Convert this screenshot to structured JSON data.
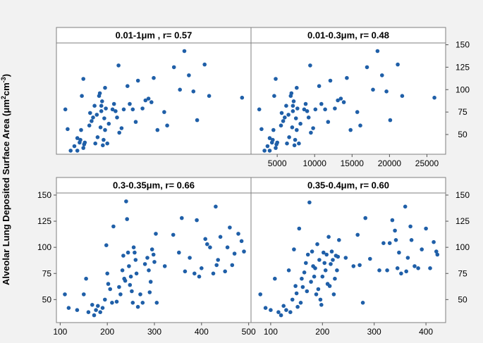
{
  "figure": {
    "ylabel_main": "Alveolar Lung  Deposited Surface Area (μm",
    "ylabel_sup1": "2",
    "ylabel_mid": "cm",
    "ylabel_sup2": "-3",
    "ylabel_end": ")",
    "marker_color": "#1f5fa8",
    "panel_bg": "#ffffff",
    "figure_bg": "#f2f2f2"
  },
  "chart_data": [
    {
      "type": "scatter",
      "title": "0.01-1μm  , r= 0.57",
      "xlim": [
        1500,
        27500
      ],
      "xticks": [
        5000,
        10000,
        15000,
        20000,
        25000
      ],
      "xticks_shown": false,
      "ylim": [
        28,
        152
      ],
      "yticks": [
        50,
        75,
        100,
        125,
        150
      ],
      "yticks_side": "right",
      "points": [
        [
          2700,
          78
        ],
        [
          3000,
          56
        ],
        [
          3400,
          32
        ],
        [
          3900,
          37
        ],
        [
          4300,
          32
        ],
        [
          4300,
          46
        ],
        [
          4600,
          41
        ],
        [
          4700,
          44
        ],
        [
          4800,
          55
        ],
        [
          4900,
          93
        ],
        [
          5100,
          112
        ],
        [
          5100,
          35
        ],
        [
          5200,
          39
        ],
        [
          5300,
          41
        ],
        [
          5900,
          60
        ],
        [
          6000,
          74
        ],
        [
          6200,
          65
        ],
        [
          6400,
          69
        ],
        [
          6600,
          82
        ],
        [
          6700,
          40
        ],
        [
          6900,
          72
        ],
        [
          7000,
          47
        ],
        [
          7200,
          93
        ],
        [
          7300,
          96
        ],
        [
          7400,
          58
        ],
        [
          7500,
          76
        ],
        [
          7500,
          82
        ],
        [
          7600,
          87
        ],
        [
          7700,
          38
        ],
        [
          7800,
          44
        ],
        [
          7900,
          68
        ],
        [
          8000,
          102
        ],
        [
          8000,
          55
        ],
        [
          8100,
          79
        ],
        [
          8300,
          40
        ],
        [
          8500,
          62
        ],
        [
          9000,
          78
        ],
        [
          9200,
          84
        ],
        [
          9400,
          76
        ],
        [
          9600,
          69
        ],
        [
          9800,
          127
        ],
        [
          9900,
          52
        ],
        [
          10200,
          57
        ],
        [
          10500,
          78
        ],
        [
          11000,
          104
        ],
        [
          11300,
          84
        ],
        [
          11700,
          78
        ],
        [
          12100,
          64
        ],
        [
          12400,
          110
        ],
        [
          13000,
          79
        ],
        [
          13400,
          88
        ],
        [
          13800,
          90
        ],
        [
          14200,
          86
        ],
        [
          14500,
          113
        ],
        [
          15000,
          55
        ],
        [
          15900,
          75
        ],
        [
          16300,
          60
        ],
        [
          17200,
          125
        ],
        [
          18000,
          100
        ],
        [
          18600,
          143
        ],
        [
          19200,
          116
        ],
        [
          19800,
          98
        ],
        [
          20300,
          66
        ],
        [
          21300,
          128
        ],
        [
          21900,
          93
        ],
        [
          26300,
          91
        ]
      ]
    },
    {
      "type": "scatter",
      "title": "0.01-0.3μm, r= 0.48",
      "xlim": [
        1500,
        27500
      ],
      "xticks": [
        5000,
        10000,
        15000,
        20000,
        25000
      ],
      "ylim": [
        28,
        152
      ],
      "yticks": [
        50,
        75,
        100,
        125,
        150
      ],
      "yticks_side": "right",
      "points": [
        [
          2600,
          78
        ],
        [
          2900,
          56
        ],
        [
          3300,
          32
        ],
        [
          3700,
          37
        ],
        [
          4000,
          32
        ],
        [
          4000,
          46
        ],
        [
          4300,
          41
        ],
        [
          4400,
          44
        ],
        [
          4500,
          55
        ],
        [
          4600,
          93
        ],
        [
          4800,
          112
        ],
        [
          4800,
          35
        ],
        [
          4900,
          39
        ],
        [
          5000,
          41
        ],
        [
          5500,
          60
        ],
        [
          5600,
          74
        ],
        [
          5800,
          65
        ],
        [
          6000,
          69
        ],
        [
          6200,
          82
        ],
        [
          6300,
          40
        ],
        [
          6500,
          72
        ],
        [
          6600,
          47
        ],
        [
          6800,
          93
        ],
        [
          6900,
          96
        ],
        [
          7000,
          58
        ],
        [
          7100,
          76
        ],
        [
          7100,
          82
        ],
        [
          7200,
          87
        ],
        [
          7300,
          38
        ],
        [
          7400,
          44
        ],
        [
          7500,
          68
        ],
        [
          7600,
          102
        ],
        [
          7600,
          55
        ],
        [
          7700,
          79
        ],
        [
          7900,
          40
        ],
        [
          8100,
          62
        ],
        [
          8600,
          78
        ],
        [
          8800,
          84
        ],
        [
          9000,
          76
        ],
        [
          9200,
          69
        ],
        [
          9400,
          127
        ],
        [
          9500,
          52
        ],
        [
          9800,
          57
        ],
        [
          10100,
          78
        ],
        [
          10600,
          104
        ],
        [
          10900,
          84
        ],
        [
          11400,
          78
        ],
        [
          11800,
          64
        ],
        [
          12100,
          110
        ],
        [
          12700,
          79
        ],
        [
          13100,
          88
        ],
        [
          13500,
          90
        ],
        [
          13900,
          86
        ],
        [
          14300,
          113
        ],
        [
          14800,
          55
        ],
        [
          15700,
          75
        ],
        [
          16100,
          60
        ],
        [
          17000,
          125
        ],
        [
          17800,
          100
        ],
        [
          18400,
          143
        ],
        [
          19000,
          116
        ],
        [
          19600,
          98
        ],
        [
          20100,
          66
        ],
        [
          21100,
          128
        ],
        [
          21700,
          93
        ],
        [
          26000,
          91
        ]
      ]
    },
    {
      "type": "scatter",
      "title": "0.3-0.35μm, r= 0.66",
      "xlim": [
        92,
        505
      ],
      "xticks": [
        100,
        200,
        300,
        400,
        500
      ],
      "ylim": [
        28,
        152
      ],
      "yticks": [
        50,
        75,
        100,
        125,
        150
      ],
      "yticks_side": "left",
      "points": [
        [
          110,
          55
        ],
        [
          118,
          42
        ],
        [
          136,
          40
        ],
        [
          150,
          55
        ],
        [
          155,
          70
        ],
        [
          160,
          38
        ],
        [
          168,
          45
        ],
        [
          172,
          35
        ],
        [
          176,
          40
        ],
        [
          180,
          44
        ],
        [
          185,
          38
        ],
        [
          190,
          42
        ],
        [
          195,
          50
        ],
        [
          198,
          102
        ],
        [
          200,
          75
        ],
        [
          202,
          65
        ],
        [
          206,
          60
        ],
        [
          210,
          47
        ],
        [
          213,
          120
        ],
        [
          220,
          48
        ],
        [
          225,
          62
        ],
        [
          228,
          55
        ],
        [
          232,
          78
        ],
        [
          234,
          92
        ],
        [
          236,
          70
        ],
        [
          238,
          68
        ],
        [
          240,
          144
        ],
        [
          242,
          127
        ],
        [
          244,
          95
        ],
        [
          246,
          82
        ],
        [
          248,
          64
        ],
        [
          250,
          72
        ],
        [
          252,
          58
        ],
        [
          254,
          47
        ],
        [
          256,
          100
        ],
        [
          258,
          95
        ],
        [
          260,
          88
        ],
        [
          262,
          75
        ],
        [
          265,
          43
        ],
        [
          270,
          55
        ],
        [
          275,
          47
        ],
        [
          280,
          84
        ],
        [
          285,
          90
        ],
        [
          288,
          78
        ],
        [
          290,
          57
        ],
        [
          292,
          67
        ],
        [
          295,
          98
        ],
        [
          298,
          93
        ],
        [
          300,
          86
        ],
        [
          303,
          113
        ],
        [
          305,
          47
        ],
        [
          322,
          82
        ],
        [
          340,
          112
        ],
        [
          352,
          95
        ],
        [
          358,
          128
        ],
        [
          365,
          77
        ],
        [
          375,
          90
        ],
        [
          385,
          75
        ],
        [
          390,
          126
        ],
        [
          395,
          72
        ],
        [
          400,
          80
        ],
        [
          408,
          108
        ],
        [
          412,
          103
        ],
        [
          418,
          100
        ],
        [
          425,
          75
        ],
        [
          430,
          139
        ],
        [
          432,
          83
        ],
        [
          435,
          88
        ],
        [
          440,
          110
        ],
        [
          450,
          77
        ],
        [
          455,
          100
        ],
        [
          460,
          119
        ],
        [
          465,
          83
        ],
        [
          470,
          94
        ],
        [
          478,
          113
        ],
        [
          485,
          106
        ],
        [
          490,
          96
        ]
      ]
    },
    {
      "type": "scatter",
      "title": "0.35-0.4μm, r= 0.60",
      "xlim": [
        62,
        438
      ],
      "xticks": [
        100,
        200,
        300,
        400
      ],
      "ylim": [
        28,
        152
      ],
      "yticks": [
        50,
        75,
        100,
        125,
        150
      ],
      "yticks_side": "right",
      "points": [
        [
          80,
          55
        ],
        [
          90,
          42
        ],
        [
          100,
          40
        ],
        [
          108,
          70
        ],
        [
          115,
          38
        ],
        [
          120,
          35
        ],
        [
          125,
          44
        ],
        [
          130,
          40
        ],
        [
          135,
          78
        ],
        [
          138,
          38
        ],
        [
          142,
          50
        ],
        [
          145,
          98
        ],
        [
          148,
          63
        ],
        [
          150,
          56
        ],
        [
          152,
          43
        ],
        [
          155,
          118
        ],
        [
          158,
          47
        ],
        [
          160,
          70
        ],
        [
          162,
          62
        ],
        [
          165,
          76
        ],
        [
          168,
          85
        ],
        [
          170,
          58
        ],
        [
          172,
          93
        ],
        [
          175,
          143
        ],
        [
          178,
          67
        ],
        [
          180,
          96
        ],
        [
          182,
          82
        ],
        [
          184,
          72
        ],
        [
          186,
          80
        ],
        [
          188,
          55
        ],
        [
          190,
          103
        ],
        [
          192,
          60
        ],
        [
          194,
          88
        ],
        [
          196,
          50
        ],
        [
          198,
          45
        ],
        [
          200,
          72
        ],
        [
          202,
          95
        ],
        [
          204,
          85
        ],
        [
          206,
          78
        ],
        [
          208,
          93
        ],
        [
          210,
          65
        ],
        [
          212,
          110
        ],
        [
          214,
          63
        ],
        [
          216,
          84
        ],
        [
          218,
          96
        ],
        [
          220,
          88
        ],
        [
          222,
          55
        ],
        [
          224,
          70
        ],
        [
          226,
          92
        ],
        [
          228,
          78
        ],
        [
          230,
          91
        ],
        [
          232,
          107
        ],
        [
          245,
          90
        ],
        [
          260,
          82
        ],
        [
          268,
          112
        ],
        [
          272,
          83
        ],
        [
          278,
          47
        ],
        [
          283,
          128
        ],
        [
          292,
          89
        ],
        [
          310,
          78
        ],
        [
          318,
          104
        ],
        [
          325,
          78
        ],
        [
          330,
          104
        ],
        [
          335,
          126
        ],
        [
          340,
          116
        ],
        [
          342,
          107
        ],
        [
          345,
          80
        ],
        [
          348,
          95
        ],
        [
          352,
          75
        ],
        [
          360,
          139
        ],
        [
          362,
          77
        ],
        [
          365,
          90
        ],
        [
          370,
          120
        ],
        [
          372,
          107
        ],
        [
          378,
          82
        ],
        [
          385,
          80
        ],
        [
          392,
          98
        ],
        [
          400,
          118
        ],
        [
          408,
          80
        ],
        [
          415,
          105
        ],
        [
          420,
          96
        ],
        [
          422,
          93
        ]
      ]
    }
  ]
}
